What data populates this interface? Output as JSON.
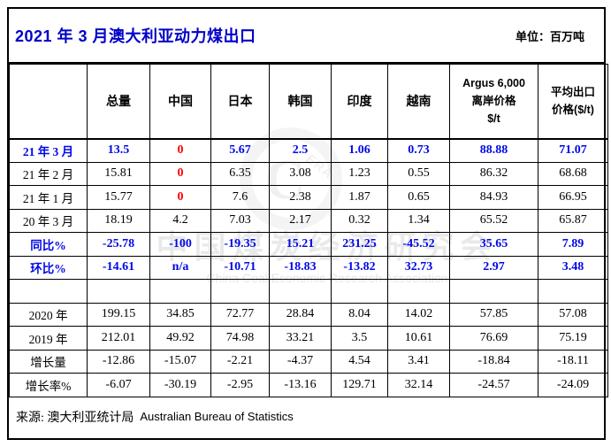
{
  "title": "2021 年 3 月澳大利亚动力煤出口",
  "unit_label": "单位：百万吨",
  "colors": {
    "title_blue": "#0000C8",
    "data_blue": "#0008E6",
    "zero_red": "#FF0000",
    "border": "#000000"
  },
  "watermark": {
    "logo_letter": "C",
    "logo_text": "ERA",
    "line1": "中国煤炭经济研究会",
    "line2": "China Coal Economic Research Association"
  },
  "table": {
    "corner_label": "",
    "columns": [
      "总量",
      "中国",
      "日本",
      "韩国",
      "印度",
      "越南",
      "Argus 6,000\n离岸价格\n$/t",
      "平均出口\n价格($/t)"
    ],
    "rows": [
      {
        "label": "21 年 3 月",
        "label_style": "blue",
        "values": [
          "13.5",
          "0",
          "5.67",
          "2.5",
          "1.06",
          "0.73",
          "88.88",
          "71.07"
        ],
        "value_styles": [
          "blue",
          "red",
          "blue",
          "blue",
          "blue",
          "blue",
          "blue",
          "blue"
        ]
      },
      {
        "label": "21 年 2 月",
        "values": [
          "15.81",
          "0",
          "6.35",
          "3.08",
          "1.23",
          "0.55",
          "86.32",
          "68.68"
        ],
        "value_styles": [
          "black",
          "red",
          "black",
          "black",
          "black",
          "black",
          "black",
          "black"
        ]
      },
      {
        "label": "21 年 1 月",
        "values": [
          "15.77",
          "0",
          "7.6",
          "2.38",
          "1.87",
          "0.65",
          "84.93",
          "66.95"
        ],
        "value_styles": [
          "black",
          "red",
          "black",
          "black",
          "black",
          "black",
          "black",
          "black"
        ]
      },
      {
        "label": "20 年 3 月",
        "values": [
          "18.19",
          "4.2",
          "7.03",
          "2.17",
          "0.32",
          "1.34",
          "65.52",
          "65.87"
        ]
      },
      {
        "label": "同比%",
        "label_style": "blue",
        "values": [
          "-25.78",
          "-100",
          "-19.35",
          "15.21",
          "231.25",
          "-45.52",
          "35.65",
          "7.89"
        ],
        "value_styles": [
          "blue",
          "blue",
          "blue",
          "blue",
          "blue",
          "blue",
          "blue",
          "blue"
        ]
      },
      {
        "label": "环比%",
        "label_style": "blue",
        "values": [
          "-14.61",
          "n/a",
          "-10.71",
          "-18.83",
          "-13.82",
          "32.73",
          "2.97",
          "3.48"
        ],
        "value_styles": [
          "blue",
          "blue",
          "blue",
          "blue",
          "blue",
          "blue",
          "blue",
          "blue"
        ]
      },
      {
        "label": "",
        "values": [
          "",
          "",
          "",
          "",
          "",
          "",
          "",
          ""
        ]
      },
      {
        "label": "2020 年",
        "values": [
          "199.15",
          "34.85",
          "72.77",
          "28.84",
          "8.04",
          "14.02",
          "57.85",
          "57.08"
        ]
      },
      {
        "label": "2019 年",
        "values": [
          "212.01",
          "49.92",
          "74.98",
          "33.21",
          "3.5",
          "10.61",
          "76.69",
          "75.19"
        ]
      },
      {
        "label": "增长量",
        "values": [
          "-12.86",
          "-15.07",
          "-2.21",
          "-4.37",
          "4.54",
          "3.41",
          "-18.84",
          "-18.11"
        ]
      },
      {
        "label": "增长率%",
        "values": [
          "-6.07",
          "-30.19",
          "-2.95",
          "-13.16",
          "129.71",
          "32.14",
          "-24.57",
          "-24.09"
        ]
      }
    ]
  },
  "source": {
    "cn": "来源: 澳大利亚统计局",
    "en": "Australian Bureau of Statistics"
  }
}
